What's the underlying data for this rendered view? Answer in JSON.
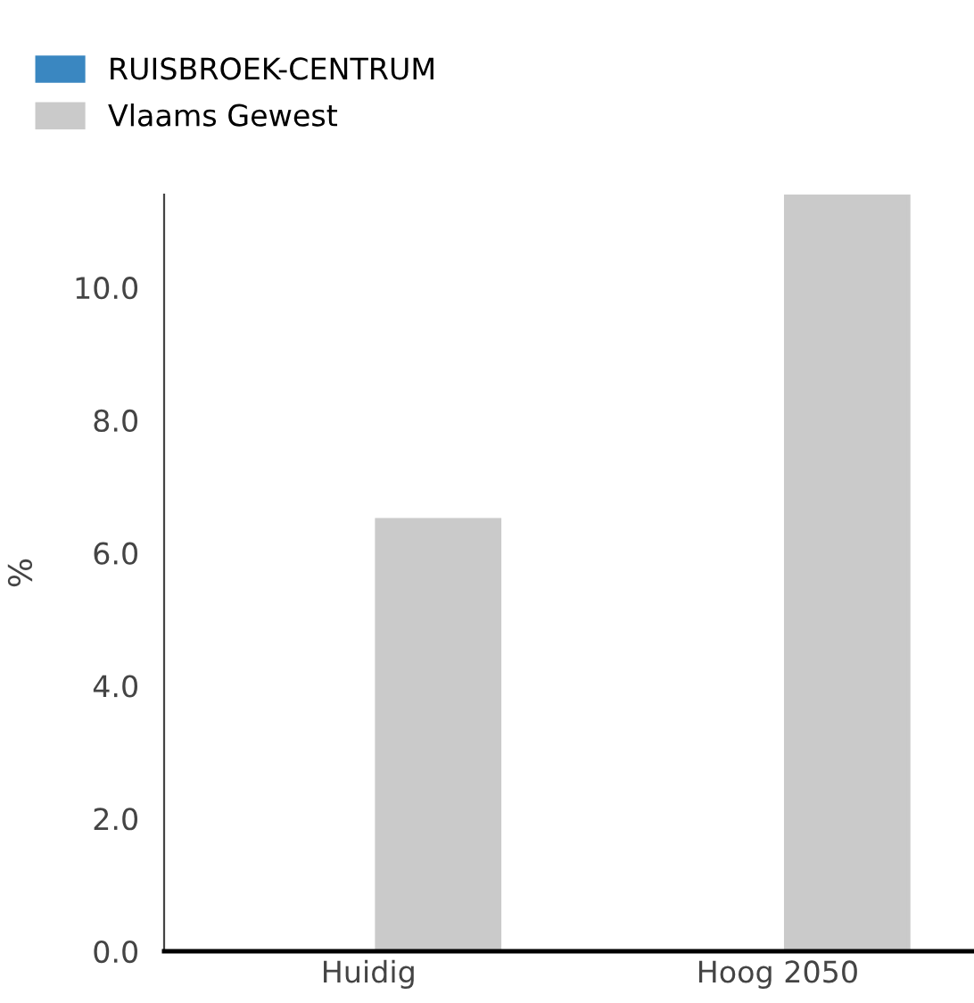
{
  "chart_data": {
    "type": "bar",
    "ylabel": "%",
    "categories": [
      "Huidig",
      "Hoog 2050"
    ],
    "series": [
      {
        "name": "RUISBROEK-CENTRUM",
        "color": "#3a87c1",
        "values": [
          0,
          0
        ]
      },
      {
        "name": "Vlaams Gewest",
        "color": "#cacaca",
        "values": [
          6.5,
          11.4
        ]
      }
    ],
    "ylim": [
      0,
      11.4
    ],
    "yticks": [
      {
        "value": 0,
        "label": "0.0"
      },
      {
        "value": 2,
        "label": "2.0"
      },
      {
        "value": 4,
        "label": "4.0"
      },
      {
        "value": 6,
        "label": "6.0"
      },
      {
        "value": 8,
        "label": "8.0"
      },
      {
        "value": 10,
        "label": "10.0"
      }
    ],
    "grid": false,
    "legend": "top left"
  }
}
